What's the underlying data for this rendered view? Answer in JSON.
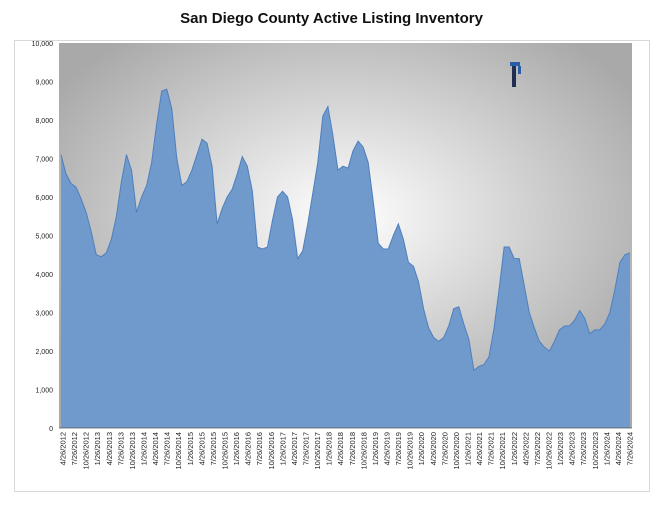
{
  "chart_data": {
    "type": "area",
    "title": "San Diego County Active Listing Inventory",
    "xlabel": "",
    "ylabel": "",
    "ylim": [
      0,
      10000
    ],
    "yticks": [
      "0",
      "1,000",
      "2,000",
      "3,000",
      "4,000",
      "5,000",
      "6,000",
      "7,000",
      "8,000",
      "9,000",
      "10,000"
    ],
    "grid": false,
    "legend": "none",
    "colors": {
      "fill": "#6f9acb",
      "stroke": "#4f7fbd",
      "plot_bg_center": "#ffffff",
      "plot_bg_edge": "#a9a9a9"
    },
    "xticks": [
      "4/26/2012",
      "7/26/2012",
      "10/26/2012",
      "1/26/2013",
      "4/26/2013",
      "7/26/2013",
      "10/26/2013",
      "1/26/2014",
      "4/26/2014",
      "7/26/2014",
      "10/26/2014",
      "1/26/2015",
      "4/26/2015",
      "7/26/2015",
      "10/26/2015",
      "1/26/2016",
      "4/26/2016",
      "7/26/2016",
      "10/26/2016",
      "1/26/2017",
      "4/26/2017",
      "7/26/2017",
      "10/26/2017",
      "1/26/2018",
      "4/26/2018",
      "7/26/2018",
      "10/26/2018",
      "1/26/2019",
      "4/26/2019",
      "7/26/2019",
      "10/26/2019",
      "1/26/2020",
      "4/26/2020",
      "7/26/2020",
      "10/26/2020",
      "1/26/2021",
      "4/26/2021",
      "7/26/2021",
      "10/26/2021",
      "1/26/2022",
      "4/26/2022",
      "7/26/2022",
      "10/26/2022",
      "1/26/2023",
      "4/26/2023",
      "7/26/2023",
      "10/26/2023",
      "1/26/2024",
      "4/26/2024",
      "7/26/2024"
    ],
    "series": [
      {
        "values": [
          [
            0,
            7100
          ],
          [
            1,
            6600
          ],
          [
            2,
            6350
          ],
          [
            3,
            6250
          ],
          [
            4,
            5950
          ],
          [
            5,
            5600
          ],
          [
            6,
            5100
          ],
          [
            7,
            4500
          ],
          [
            8,
            4450
          ],
          [
            9,
            4550
          ],
          [
            10,
            4900
          ],
          [
            11,
            5500
          ],
          [
            12,
            6400
          ],
          [
            13,
            7100
          ],
          [
            14,
            6700
          ],
          [
            15,
            5600
          ],
          [
            16,
            6000
          ],
          [
            17,
            6300
          ],
          [
            18,
            6900
          ],
          [
            19,
            7900
          ],
          [
            20,
            8750
          ],
          [
            21,
            8800
          ],
          [
            22,
            8300
          ],
          [
            23,
            7000
          ],
          [
            24,
            6300
          ],
          [
            25,
            6400
          ],
          [
            26,
            6700
          ],
          [
            27,
            7100
          ],
          [
            28,
            7500
          ],
          [
            29,
            7400
          ],
          [
            30,
            6800
          ],
          [
            31,
            5300
          ],
          [
            32,
            5700
          ],
          [
            33,
            6000
          ],
          [
            34,
            6200
          ],
          [
            35,
            6600
          ],
          [
            36,
            7050
          ],
          [
            37,
            6800
          ],
          [
            38,
            6150
          ],
          [
            39,
            4700
          ],
          [
            40,
            4650
          ],
          [
            41,
            4700
          ],
          [
            42,
            5400
          ],
          [
            43,
            6000
          ],
          [
            44,
            6150
          ],
          [
            45,
            6000
          ],
          [
            46,
            5400
          ],
          [
            47,
            4400
          ],
          [
            48,
            4600
          ],
          [
            49,
            5300
          ],
          [
            50,
            6100
          ],
          [
            51,
            6900
          ],
          [
            52,
            8100
          ],
          [
            53,
            8350
          ],
          [
            54,
            7600
          ],
          [
            55,
            6700
          ],
          [
            56,
            6800
          ],
          [
            57,
            6750
          ],
          [
            58,
            7200
          ],
          [
            59,
            7450
          ],
          [
            60,
            7300
          ],
          [
            61,
            6900
          ],
          [
            62,
            5900
          ],
          [
            63,
            4800
          ],
          [
            64,
            4650
          ],
          [
            65,
            4650
          ],
          [
            66,
            5000
          ],
          [
            67,
            5300
          ],
          [
            68,
            4900
          ],
          [
            69,
            4300
          ],
          [
            70,
            4200
          ],
          [
            71,
            3800
          ],
          [
            72,
            3100
          ],
          [
            73,
            2600
          ],
          [
            74,
            2350
          ],
          [
            75,
            2250
          ],
          [
            76,
            2350
          ],
          [
            77,
            2650
          ],
          [
            78,
            3100
          ],
          [
            79,
            3150
          ],
          [
            80,
            2700
          ],
          [
            81,
            2300
          ],
          [
            82,
            1500
          ],
          [
            83,
            1600
          ],
          [
            84,
            1650
          ],
          [
            85,
            1850
          ],
          [
            86,
            2600
          ],
          [
            87,
            3600
          ],
          [
            88,
            4700
          ],
          [
            89,
            4700
          ],
          [
            90,
            4400
          ],
          [
            91,
            4400
          ],
          [
            92,
            3700
          ],
          [
            93,
            3000
          ],
          [
            94,
            2600
          ],
          [
            95,
            2250
          ],
          [
            96,
            2100
          ],
          [
            97,
            2000
          ],
          [
            98,
            2250
          ],
          [
            99,
            2550
          ],
          [
            100,
            2650
          ],
          [
            101,
            2650
          ],
          [
            102,
            2800
          ],
          [
            103,
            3050
          ],
          [
            104,
            2850
          ],
          [
            105,
            2450
          ],
          [
            106,
            2550
          ],
          [
            107,
            2550
          ],
          [
            108,
            2700
          ],
          [
            109,
            3000
          ],
          [
            110,
            3600
          ],
          [
            111,
            4300
          ],
          [
            112,
            4500
          ],
          [
            113,
            4550
          ]
        ]
      }
    ]
  }
}
